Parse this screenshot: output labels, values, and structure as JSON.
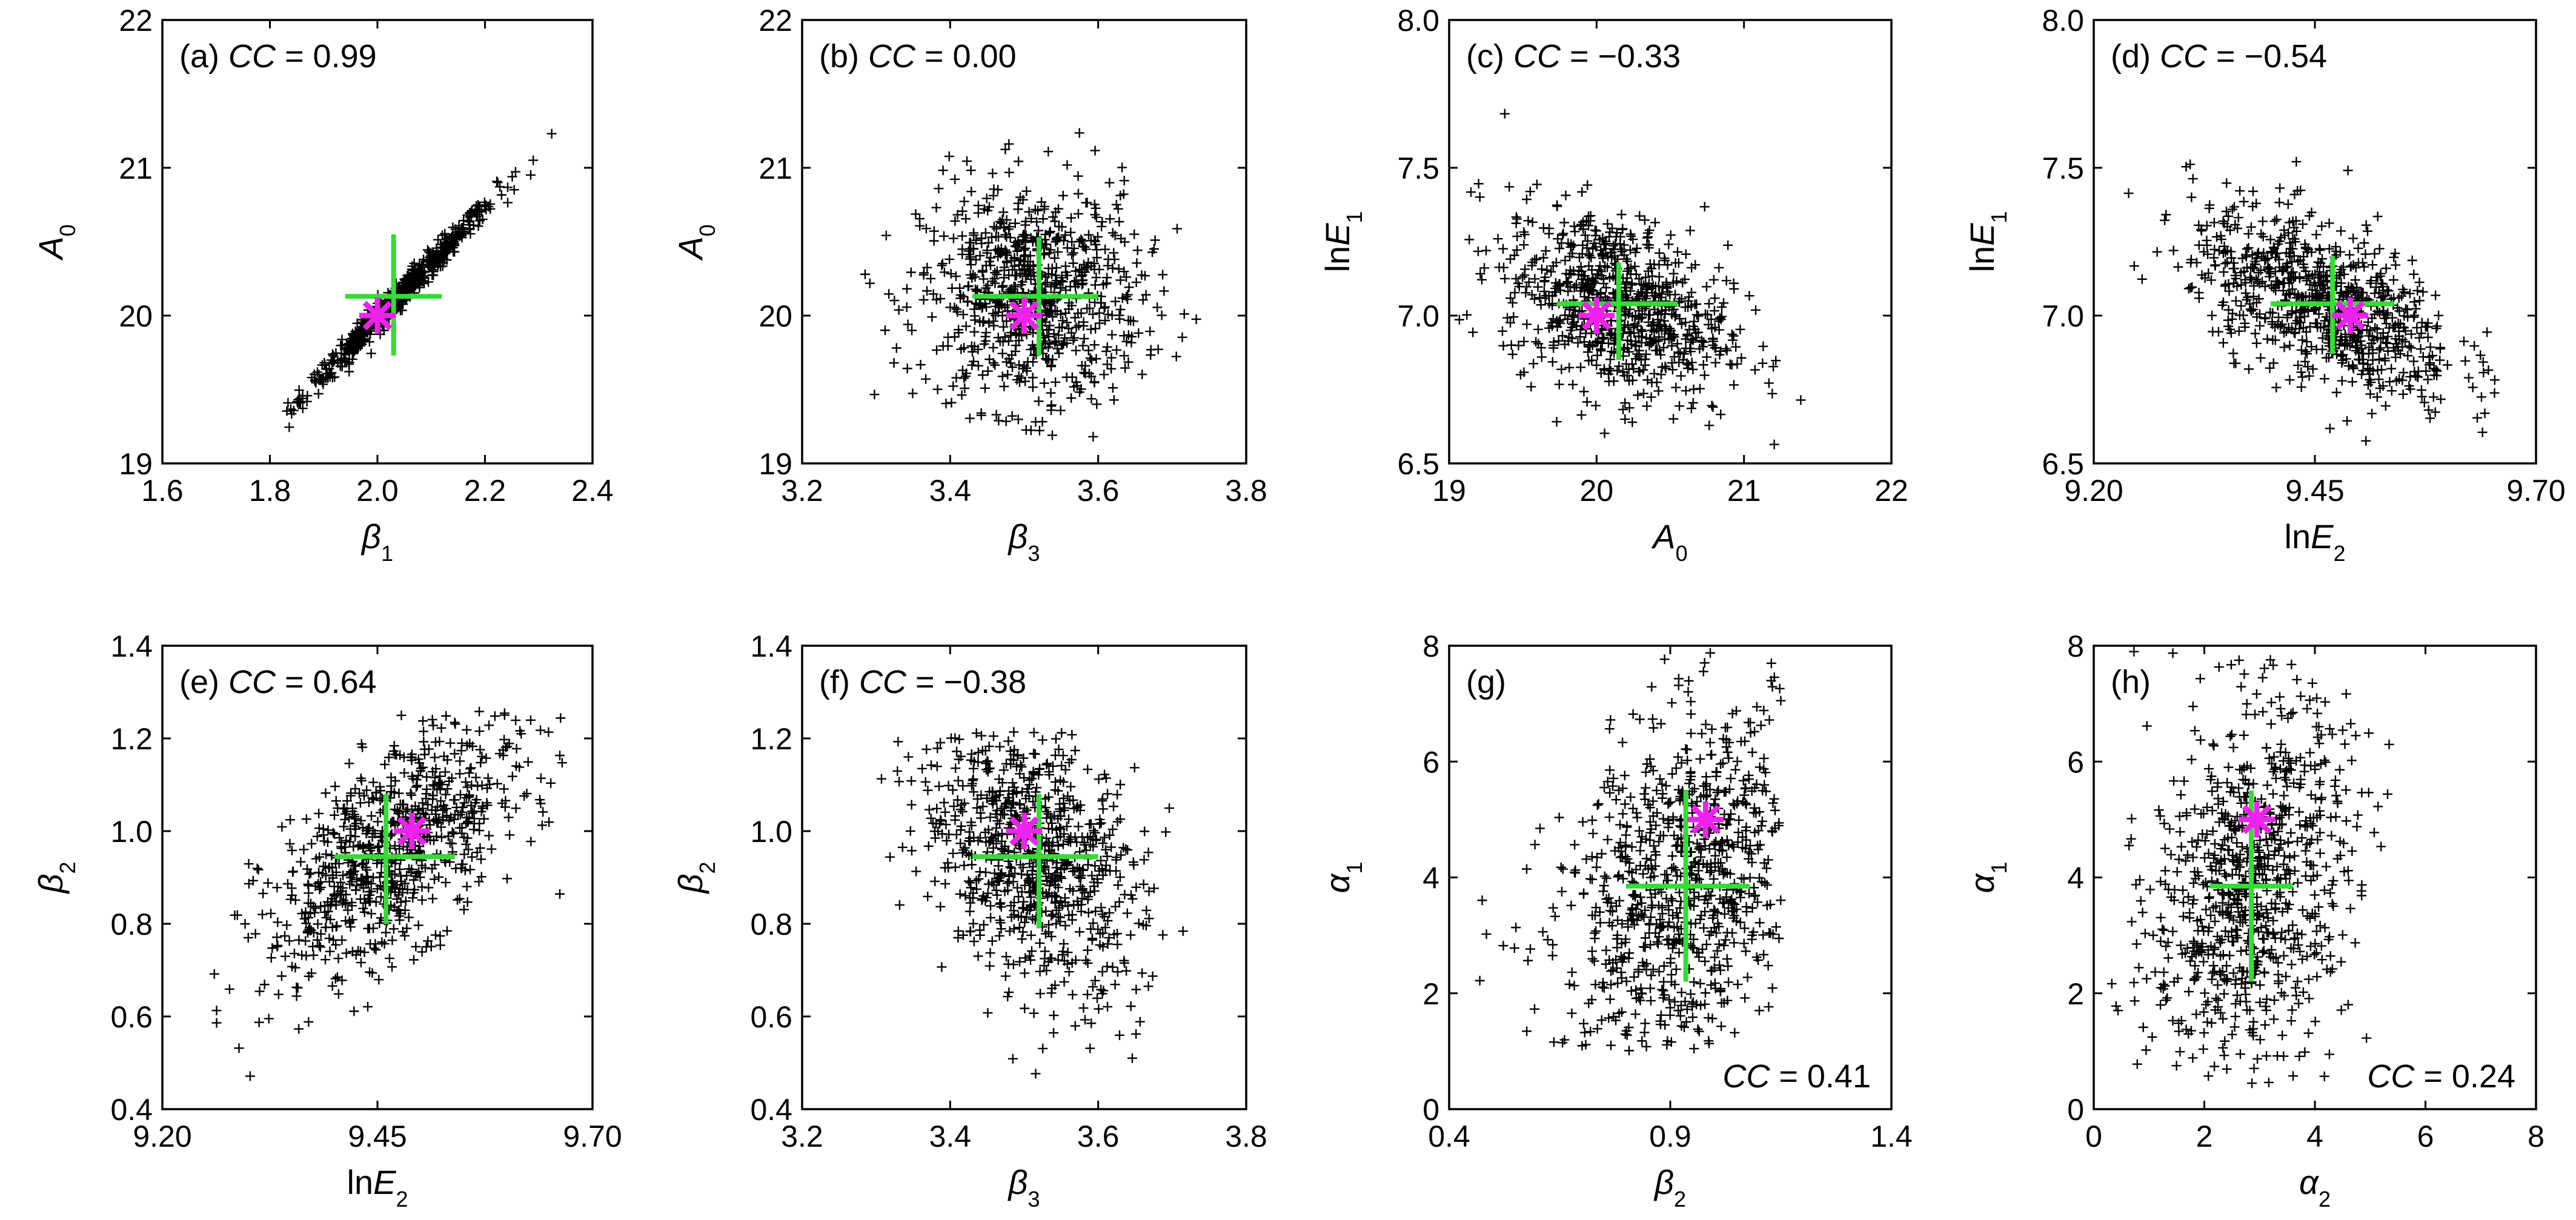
{
  "chart_data": [
    {
      "id": "a",
      "type": "scatter",
      "panel_label": "(a)",
      "cc_label": "CC",
      "cc_value": "= 0.99",
      "cc_position": "top-left",
      "xlabel": {
        "base": "β",
        "sub": "1"
      },
      "ylabel": {
        "base": "A",
        "sub": "0",
        "prefix": ""
      },
      "xlim": [
        1.6,
        2.4
      ],
      "ylim": [
        19,
        22
      ],
      "xticks": [
        1.6,
        1.8,
        2.0,
        2.2,
        2.4
      ],
      "xtick_labels": [
        "1.6",
        "1.8",
        "2.0",
        "2.2",
        "2.4"
      ],
      "yticks": [
        19,
        20,
        21,
        22
      ],
      "ytick_labels": [
        "19",
        "20",
        "21",
        "22"
      ],
      "cloud": {
        "cx": 2.04,
        "cy": 20.13,
        "sx": 0.09,
        "sy": 0.34,
        "corr": 0.99,
        "n": 600,
        "xclip": [
          1.82,
          2.4
        ],
        "yclip": [
          19.15,
          21.85
        ]
      },
      "green_cross": {
        "x": 2.03,
        "y": 20.13,
        "x_low": 1.94,
        "x_high": 2.12,
        "y_low": 19.73,
        "y_high": 20.55
      },
      "magenta_star": {
        "x": 2.0,
        "y": 20.0
      }
    },
    {
      "id": "b",
      "type": "scatter",
      "panel_label": "(b)",
      "cc_label": "CC",
      "cc_value": "= 0.00",
      "cc_position": "top-left",
      "xlabel": {
        "base": "β",
        "sub": "3"
      },
      "ylabel": {
        "base": "A",
        "sub": "0",
        "prefix": ""
      },
      "xlim": [
        3.2,
        3.8
      ],
      "ylim": [
        19,
        22
      ],
      "xticks": [
        3.2,
        3.4,
        3.6,
        3.8
      ],
      "xtick_labels": [
        "3.2",
        "3.4",
        "3.6",
        "3.8"
      ],
      "yticks": [
        19,
        20,
        21,
        22
      ],
      "ytick_labels": [
        "19",
        "20",
        "21",
        "22"
      ],
      "cloud": {
        "cx": 3.51,
        "cy": 20.13,
        "sx": 0.075,
        "sy": 0.38,
        "corr": 0.0,
        "n": 800,
        "xclip": [
          3.28,
          3.79
        ],
        "yclip": [
          19.15,
          21.95
        ]
      },
      "green_cross": {
        "x": 3.52,
        "y": 20.13,
        "x_low": 3.43,
        "x_high": 3.6,
        "y_low": 19.73,
        "y_high": 20.53
      },
      "magenta_star": {
        "x": 3.5,
        "y": 20.0
      }
    },
    {
      "id": "c",
      "type": "scatter",
      "panel_label": "(c)",
      "cc_label": "CC",
      "cc_value": "= −0.33",
      "cc_position": "top-left",
      "xlabel": {
        "base": "A",
        "sub": "0"
      },
      "ylabel": {
        "base": "E",
        "sub": "1",
        "prefix": "ln"
      },
      "xlim": [
        19,
        22
      ],
      "ylim": [
        6.5,
        8.0
      ],
      "xticks": [
        19,
        20,
        21,
        22
      ],
      "xtick_labels": [
        "19",
        "20",
        "21",
        "22"
      ],
      "yticks": [
        6.5,
        7.0,
        7.5,
        8.0
      ],
      "ytick_labels": [
        "6.5",
        "7.0",
        "7.5",
        "8.0"
      ],
      "cloud": {
        "cx": 20.13,
        "cy": 7.04,
        "sx": 0.38,
        "sy": 0.16,
        "corr": -0.33,
        "n": 800,
        "xclip": [
          19.05,
          21.95
        ],
        "yclip": [
          6.55,
          7.75
        ]
      },
      "green_cross": {
        "x": 20.15,
        "y": 7.04,
        "x_low": 19.73,
        "x_high": 20.55,
        "y_low": 6.85,
        "y_high": 7.18
      },
      "magenta_star": {
        "x": 20.0,
        "y": 7.0
      }
    },
    {
      "id": "d",
      "type": "scatter",
      "panel_label": "(d)",
      "cc_label": "CC",
      "cc_value": "= −0.54",
      "cc_position": "top-left",
      "xlabel": {
        "base": "E",
        "sub": "2",
        "prefix": "ln"
      },
      "ylabel": {
        "base": "E",
        "sub": "1",
        "prefix": "ln"
      },
      "xlim": [
        9.2,
        9.7
      ],
      "ylim": [
        6.5,
        8.0
      ],
      "xticks": [
        9.2,
        9.45,
        9.7
      ],
      "xtick_labels": [
        "9.20",
        "9.45",
        "9.70"
      ],
      "yticks": [
        6.5,
        7.0,
        7.5,
        8.0
      ],
      "ytick_labels": [
        "6.5",
        "7.0",
        "7.5",
        "8.0"
      ],
      "cloud": {
        "cx": 9.46,
        "cy": 7.04,
        "sx": 0.075,
        "sy": 0.16,
        "corr": -0.54,
        "n": 800,
        "xclip": [
          9.23,
          9.68
        ],
        "yclip": [
          6.57,
          7.7
        ]
      },
      "green_cross": {
        "x": 9.47,
        "y": 7.04,
        "x_low": 9.4,
        "x_high": 9.54,
        "y_low": 6.87,
        "y_high": 7.2
      },
      "magenta_star": {
        "x": 9.49,
        "y": 7.0
      }
    },
    {
      "id": "e",
      "type": "scatter",
      "panel_label": "(e)",
      "cc_label": "CC",
      "cc_value": "= 0.64",
      "cc_position": "top-left",
      "xlabel": {
        "base": "E",
        "sub": "2",
        "prefix": "ln"
      },
      "ylabel": {
        "base": "β",
        "sub": "2",
        "prefix": ""
      },
      "xlim": [
        9.2,
        9.7
      ],
      "ylim": [
        0.4,
        1.4
      ],
      "xticks": [
        9.2,
        9.45,
        9.7
      ],
      "xtick_labels": [
        "9.20",
        "9.45",
        "9.70"
      ],
      "yticks": [
        0.4,
        0.6,
        0.8,
        1.0,
        1.2,
        1.4
      ],
      "ytick_labels": [
        "0.4",
        "0.6",
        "0.8",
        "1.0",
        "1.2",
        "1.4"
      ],
      "cloud": {
        "cx": 9.47,
        "cy": 0.96,
        "sx": 0.075,
        "sy": 0.14,
        "corr": 0.64,
        "n": 800,
        "xclip": [
          9.24,
          9.67
        ],
        "yclip": [
          0.42,
          1.26
        ]
      },
      "green_cross": {
        "x": 9.46,
        "y": 0.945,
        "x_low": 9.4,
        "x_high": 9.54,
        "y_low": 0.8,
        "y_high": 1.08
      },
      "magenta_star": {
        "x": 9.49,
        "y": 1.0
      }
    },
    {
      "id": "f",
      "type": "scatter",
      "panel_label": "(f)",
      "cc_label": "CC",
      "cc_value": "= −0.38",
      "cc_position": "top-left",
      "xlabel": {
        "base": "β",
        "sub": "3"
      },
      "ylabel": {
        "base": "β",
        "sub": "2",
        "prefix": ""
      },
      "xlim": [
        3.2,
        3.8
      ],
      "ylim": [
        0.4,
        1.4
      ],
      "xticks": [
        3.2,
        3.4,
        3.6,
        3.8
      ],
      "xtick_labels": [
        "3.2",
        "3.4",
        "3.6",
        "3.8"
      ],
      "yticks": [
        0.4,
        0.6,
        0.8,
        1.0,
        1.2,
        1.4
      ],
      "ytick_labels": [
        "0.4",
        "0.6",
        "0.8",
        "1.0",
        "1.2",
        "1.4"
      ],
      "cloud": {
        "cx": 3.51,
        "cy": 0.95,
        "sx": 0.075,
        "sy": 0.15,
        "corr": -0.38,
        "n": 800,
        "xclip": [
          3.3,
          3.79
        ],
        "yclip": [
          0.42,
          1.22
        ]
      },
      "green_cross": {
        "x": 3.52,
        "y": 0.945,
        "x_low": 3.43,
        "x_high": 3.6,
        "y_low": 0.79,
        "y_high": 1.08
      },
      "magenta_star": {
        "x": 3.5,
        "y": 1.0
      }
    },
    {
      "id": "g",
      "type": "scatter",
      "panel_label": "(g)",
      "cc_label": "CC",
      "cc_value": "= 0.41",
      "cc_position": "bottom-right",
      "xlabel": {
        "base": "β",
        "sub": "2"
      },
      "ylabel": {
        "base": "α",
        "sub": "1",
        "prefix": ""
      },
      "xlim": [
        0.4,
        1.4
      ],
      "ylim": [
        0,
        8
      ],
      "xticks": [
        0.4,
        0.9,
        1.4
      ],
      "xtick_labels": [
        "0.4",
        "0.9",
        "1.4"
      ],
      "yticks": [
        0,
        2,
        4,
        6,
        8
      ],
      "ytick_labels": [
        "0",
        "2",
        "4",
        "6",
        "8"
      ],
      "cloud": {
        "cx": 0.93,
        "cy": 3.85,
        "sx": 0.15,
        "sy": 1.6,
        "corr": 0.41,
        "n": 800,
        "xclip": [
          0.41,
          1.15
        ],
        "yclip": [
          1.0,
          7.95
        ]
      },
      "green_cross": {
        "x": 0.935,
        "y": 3.85,
        "x_low": 0.8,
        "x_high": 1.08,
        "y_low": 2.2,
        "y_high": 5.5
      },
      "magenta_star": {
        "x": 0.98,
        "y": 5.0
      }
    },
    {
      "id": "h",
      "type": "scatter",
      "panel_label": "(h)",
      "cc_label": "CC",
      "cc_value": "= 0.24",
      "cc_position": "bottom-right",
      "xlabel": {
        "base": "α",
        "sub": "2"
      },
      "ylabel": {
        "base": "α",
        "sub": "1",
        "prefix": ""
      },
      "xlim": [
        0,
        8
      ],
      "ylim": [
        0,
        8
      ],
      "xticks": [
        0,
        2,
        4,
        6,
        8
      ],
      "xtick_labels": [
        "0",
        "2",
        "4",
        "6",
        "8"
      ],
      "yticks": [
        0,
        2,
        4,
        6,
        8
      ],
      "ytick_labels": [
        "0",
        "2",
        "4",
        "6",
        "8"
      ],
      "cloud": {
        "cx": 2.85,
        "cy": 3.85,
        "sx": 0.9,
        "sy": 1.6,
        "corr": 0.24,
        "n": 800,
        "xclip": [
          0.3,
          6.3
        ],
        "yclip": [
          0.4,
          7.95
        ]
      },
      "green_cross": {
        "x": 2.85,
        "y": 3.85,
        "x_low": 2.1,
        "x_high": 3.6,
        "y_low": 2.2,
        "y_high": 5.5
      },
      "magenta_star": {
        "x": 2.95,
        "y": 5.0
      }
    }
  ],
  "colors": {
    "points": "#000000",
    "green_cross": "#33dd33",
    "magenta_star": "#ee22ee"
  }
}
